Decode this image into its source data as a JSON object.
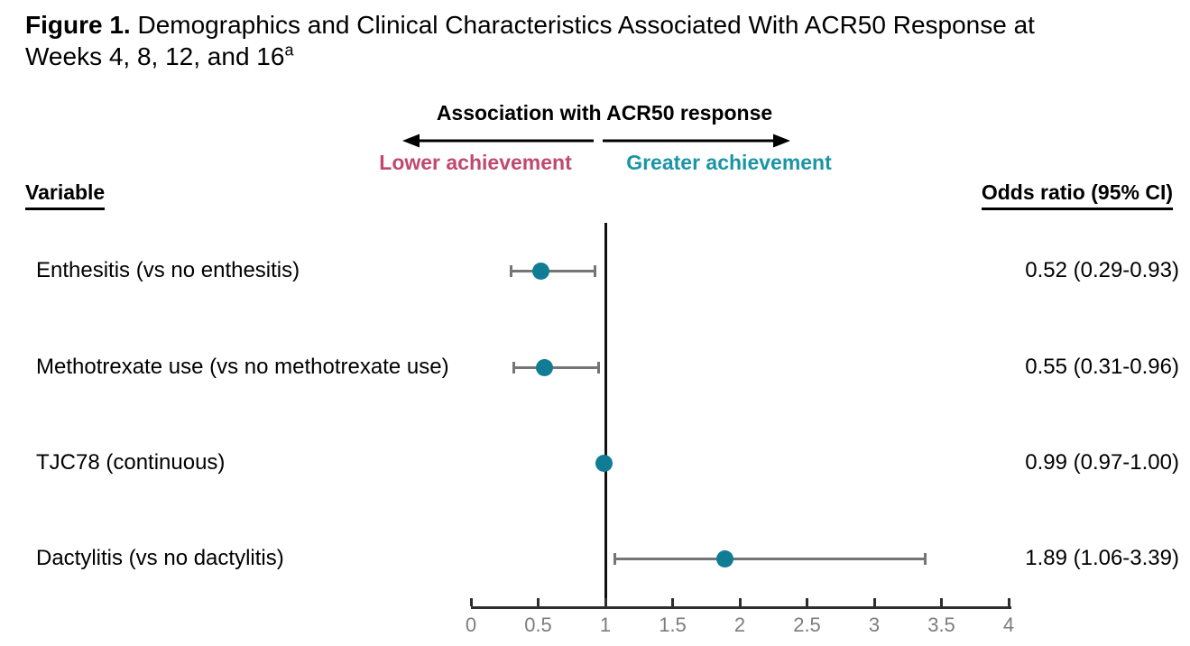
{
  "title": {
    "prefix": "Figure 1.",
    "line1_rest": " Demographics and Clinical Characteristics Associated With ACR50 Response at",
    "line2": "Weeks 4, 8, 12, and 16",
    "superscript": "a"
  },
  "annotation": {
    "header": "Association with ACR50 response",
    "left_label": "Lower achievement",
    "right_label": "Greater achievement"
  },
  "columns": {
    "variable": "Variable",
    "odds_ratio": "Odds ratio (95% CI)"
  },
  "colors": {
    "lower_label": "#c0496d",
    "greater_label": "#1a95a6",
    "marker": "#107d95",
    "ci_line": "#757575",
    "axis": "#2e2e2e",
    "tick_label": "#7d7d7d",
    "ref_line": "#111111"
  },
  "chart_data": {
    "type": "scatter",
    "subtype": "forest-plot",
    "title": "Association with ACR50 response",
    "xlabel": "Odds ratio",
    "xlim": [
      0,
      4
    ],
    "xtick_labels": [
      "0",
      "0.5",
      "1",
      "1.5",
      "2",
      "2.5",
      "3",
      "3.5",
      "4"
    ],
    "reference_line_x": 1,
    "grid": false,
    "legend": null,
    "rows": [
      {
        "label": "Enthesitis (vs no enthesitis)",
        "or": 0.52,
        "ci_low": 0.29,
        "ci_high": 0.93,
        "display": "0.52 (0.29-0.93)"
      },
      {
        "label": "Methotrexate use (vs no methotrexate use)",
        "or": 0.55,
        "ci_low": 0.31,
        "ci_high": 0.96,
        "display": "0.55 (0.31-0.96)"
      },
      {
        "label": "TJC78 (continuous)",
        "or": 0.99,
        "ci_low": 0.97,
        "ci_high": 1.0,
        "display": "0.99 (0.97-1.00)"
      },
      {
        "label": "Dactylitis (vs no dactylitis)",
        "or": 1.89,
        "ci_low": 1.06,
        "ci_high": 3.39,
        "display": "1.89 (1.06-3.39)"
      }
    ]
  }
}
